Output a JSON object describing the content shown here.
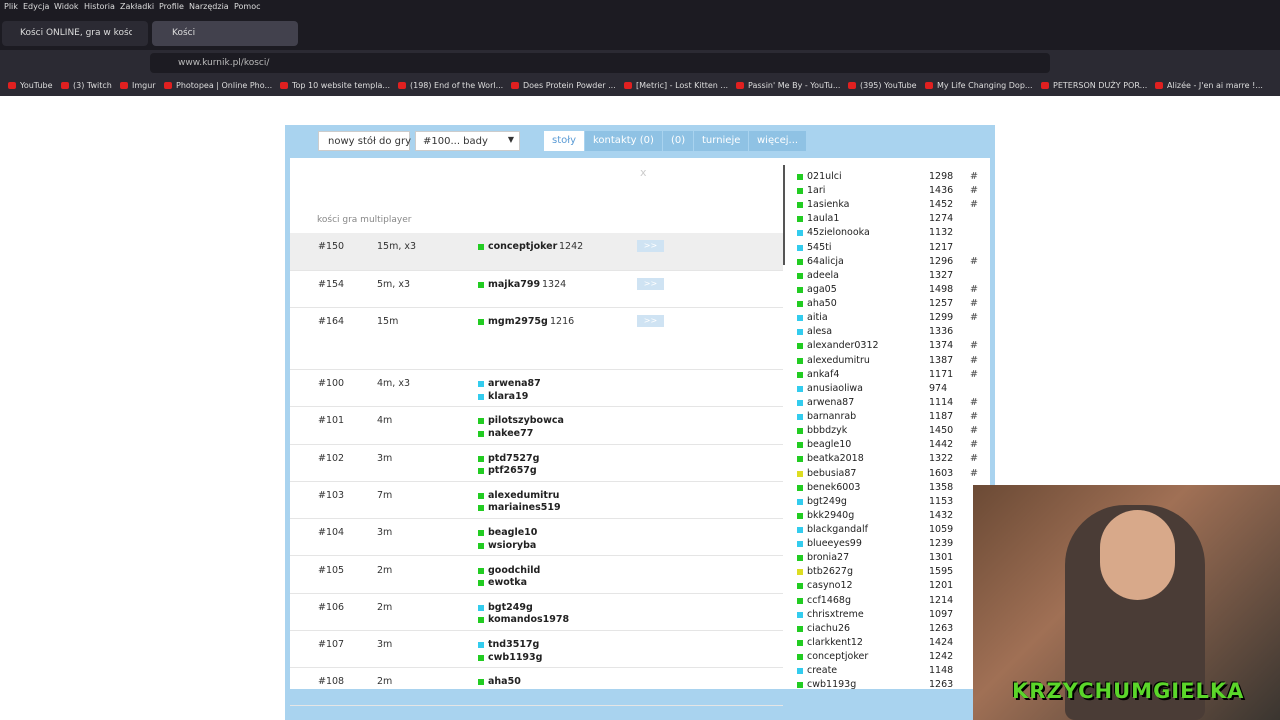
{
  "browser": {
    "menu": [
      "Plik",
      "Edycja",
      "Widok",
      "Historia",
      "Zakładki",
      "Profile",
      "Narzędzia",
      "Pomoc"
    ],
    "tabs": [
      "Kości ONLINE, gra w kości, zag",
      "Kości"
    ],
    "url": "www.kurnik.pl/kosci/",
    "bookmarks": [
      "YouTube",
      "(3) Twitch",
      "Imgur",
      "Photopea | Online Pho...",
      "Top 10 website templa...",
      "(198) End of the Worl...",
      "Does Protein Powder ...",
      "[Metric] - Lost Kitten ...",
      "Passin' Me By - YouTu...",
      "(395) YouTube",
      "My Life Changing Dop...",
      "PETERSON DUŻY POR...",
      "Alizée - J'en ai marre !..."
    ]
  },
  "toolbar": {
    "new_table": "nowy stół do gry",
    "select": "#100... bady",
    "tabs": [
      "stoły",
      "kontakty (0)",
      "(0)",
      "turnieje",
      "więcej..."
    ]
  },
  "close": "x",
  "heading": "kości gra multiplayer",
  "tables": [
    {
      "id": "#150",
      "time": "15m, x3",
      "players": [
        {
          "name": "conceptjoker",
          "rating": 1242,
          "color": "#22cc22"
        }
      ],
      "join": ">>"
    },
    {
      "id": "#154",
      "time": "5m, x3",
      "players": [
        {
          "name": "majka799",
          "rating": 1324,
          "color": "#22cc22"
        }
      ],
      "join": ">>"
    },
    {
      "id": "#164",
      "time": "15m",
      "players": [
        {
          "name": "mgm2975g",
          "rating": 1216,
          "color": "#22cc22"
        }
      ],
      "join": ">>"
    },
    {
      "id": "#100",
      "time": "4m, x3",
      "players": [
        {
          "name": "arwena87",
          "color": "#33ccee"
        },
        {
          "name": "klara19",
          "color": "#33ccee"
        }
      ]
    },
    {
      "id": "#101",
      "time": "4m",
      "players": [
        {
          "name": "pilotszybowca",
          "color": "#22cc22"
        },
        {
          "name": "nakee77",
          "color": "#22cc22"
        }
      ]
    },
    {
      "id": "#102",
      "time": "3m",
      "players": [
        {
          "name": "ptd7527g",
          "color": "#22cc22"
        },
        {
          "name": "ptf2657g",
          "color": "#22cc22"
        }
      ]
    },
    {
      "id": "#103",
      "time": "7m",
      "players": [
        {
          "name": "alexedumitru",
          "color": "#22cc22"
        },
        {
          "name": "mariaines519",
          "color": "#22cc22"
        }
      ]
    },
    {
      "id": "#104",
      "time": "3m",
      "players": [
        {
          "name": "beagle10",
          "color": "#22cc22"
        },
        {
          "name": "wsioryba",
          "color": "#22cc22"
        }
      ]
    },
    {
      "id": "#105",
      "time": "2m",
      "players": [
        {
          "name": "goodchild",
          "color": "#22cc22"
        },
        {
          "name": "ewotka",
          "color": "#22cc22"
        }
      ]
    },
    {
      "id": "#106",
      "time": "2m",
      "players": [
        {
          "name": "bgt249g",
          "color": "#33ccee"
        },
        {
          "name": "komandos1978",
          "color": "#22cc22"
        }
      ]
    },
    {
      "id": "#107",
      "time": "3m",
      "players": [
        {
          "name": "tnd3517g",
          "color": "#33ccee"
        },
        {
          "name": "cwb1193g",
          "color": "#22cc22"
        }
      ]
    },
    {
      "id": "#108",
      "time": "2m",
      "players": [
        {
          "name": "aha50",
          "color": "#22cc22"
        }
      ]
    }
  ],
  "users": [
    {
      "name": "021ulci",
      "rating": 1298,
      "flag": "#",
      "color": "#22cc22"
    },
    {
      "name": "1ari",
      "rating": 1436,
      "flag": "#",
      "color": "#22cc22"
    },
    {
      "name": "1asienka",
      "rating": 1452,
      "flag": "#",
      "color": "#22cc22"
    },
    {
      "name": "1aula1",
      "rating": 1274,
      "color": "#22cc22"
    },
    {
      "name": "45zielonooka",
      "rating": 1132,
      "color": "#33ccee"
    },
    {
      "name": "545ti",
      "rating": 1217,
      "color": "#33ccee"
    },
    {
      "name": "64alicja",
      "rating": 1296,
      "flag": "#",
      "color": "#22cc22"
    },
    {
      "name": "adeela",
      "rating": 1327,
      "color": "#22cc22"
    },
    {
      "name": "aga05",
      "rating": 1498,
      "flag": "#",
      "color": "#22cc22"
    },
    {
      "name": "aha50",
      "rating": 1257,
      "flag": "#",
      "color": "#22cc22"
    },
    {
      "name": "aitia",
      "rating": 1299,
      "flag": "#",
      "color": "#33ccee"
    },
    {
      "name": "alesa",
      "rating": 1336,
      "color": "#33ccee"
    },
    {
      "name": "alexander0312",
      "rating": 1374,
      "flag": "#",
      "color": "#22cc22"
    },
    {
      "name": "alexedumitru",
      "rating": 1387,
      "flag": "#",
      "color": "#22cc22"
    },
    {
      "name": "ankaf4",
      "rating": 1171,
      "flag": "#",
      "color": "#22cc22"
    },
    {
      "name": "anusiaoliwa",
      "rating": 974,
      "color": "#33ccee"
    },
    {
      "name": "arwena87",
      "rating": 1114,
      "flag": "#",
      "color": "#33ccee"
    },
    {
      "name": "barnanrab",
      "rating": 1187,
      "flag": "#",
      "color": "#33ccee"
    },
    {
      "name": "bbbdzyk",
      "rating": 1450,
      "flag": "#",
      "color": "#22cc22"
    },
    {
      "name": "beagle10",
      "rating": 1442,
      "flag": "#",
      "color": "#22cc22"
    },
    {
      "name": "beatka2018",
      "rating": 1322,
      "flag": "#",
      "color": "#22cc22"
    },
    {
      "name": "bebusia87",
      "rating": 1603,
      "flag": "#",
      "color": "#dddd22"
    },
    {
      "name": "benek6003",
      "rating": 1358,
      "color": "#22cc22"
    },
    {
      "name": "bgt249g",
      "rating": 1153,
      "color": "#33ccee"
    },
    {
      "name": "bkk2940g",
      "rating": 1432,
      "color": "#22cc22"
    },
    {
      "name": "blackgandalf",
      "rating": 1059,
      "color": "#33ccee"
    },
    {
      "name": "blueeyes99",
      "rating": 1239,
      "color": "#33ccee"
    },
    {
      "name": "bronia27",
      "rating": 1301,
      "color": "#22cc22"
    },
    {
      "name": "btb2627g",
      "rating": 1595,
      "color": "#dddd22"
    },
    {
      "name": "casyno12",
      "rating": 1201,
      "color": "#22cc22"
    },
    {
      "name": "ccf1468g",
      "rating": 1214,
      "color": "#22cc22"
    },
    {
      "name": "chrisxtreme",
      "rating": 1097,
      "color": "#33ccee"
    },
    {
      "name": "ciachu26",
      "rating": 1263,
      "color": "#22cc22"
    },
    {
      "name": "clarkkent12",
      "rating": 1424,
      "color": "#22cc22"
    },
    {
      "name": "conceptjoker",
      "rating": 1242,
      "color": "#22cc22"
    },
    {
      "name": "create",
      "rating": 1148,
      "color": "#33ccee"
    },
    {
      "name": "cwb1193g",
      "rating": 1263,
      "color": "#22cc22"
    }
  ],
  "overlay": "KRZYCHUMGIELKA"
}
